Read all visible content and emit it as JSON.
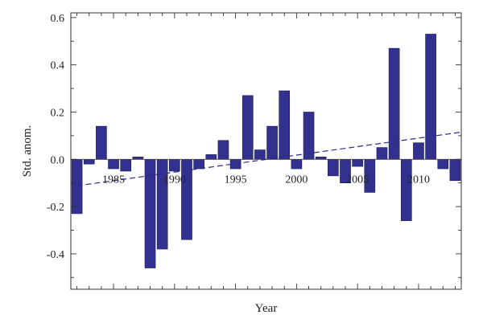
{
  "chart_data": {
    "type": "bar",
    "xlabel": "Year",
    "ylabel": "Std. anom.",
    "xlim": [
      1981.5,
      2013.5
    ],
    "ylim": [
      -0.55,
      0.62
    ],
    "x_ticks": [
      1985,
      1990,
      1995,
      2000,
      2005,
      2010
    ],
    "y_ticks": [
      -0.4,
      -0.2,
      0.0,
      0.2,
      0.4,
      0.6
    ],
    "y_tick_labels": [
      "-0.4",
      "-0.2",
      "0.0",
      "0.2",
      "0.4",
      "0.6"
    ],
    "grid": false,
    "bar_color": "#33318f",
    "trend_color": "#2b2a8a",
    "x": [
      1982,
      1983,
      1984,
      1985,
      1986,
      1987,
      1988,
      1989,
      1990,
      1991,
      1992,
      1993,
      1994,
      1995,
      1996,
      1997,
      1998,
      1999,
      2000,
      2001,
      2002,
      2003,
      2004,
      2005,
      2006,
      2007,
      2008,
      2009,
      2010,
      2011,
      2012,
      2013
    ],
    "values": [
      -0.23,
      -0.02,
      0.14,
      -0.04,
      -0.05,
      0.01,
      -0.46,
      -0.38,
      -0.05,
      -0.34,
      -0.04,
      0.02,
      0.08,
      -0.04,
      0.27,
      0.04,
      0.14,
      0.29,
      -0.04,
      0.2,
      0.01,
      -0.07,
      -0.1,
      -0.03,
      -0.14,
      0.05,
      0.47,
      -0.26,
      0.07,
      0.53,
      -0.04,
      -0.09
    ],
    "trend": {
      "x": [
        1982,
        2014
      ],
      "y": [
        -0.112,
        0.115
      ],
      "style": "dashed"
    }
  }
}
